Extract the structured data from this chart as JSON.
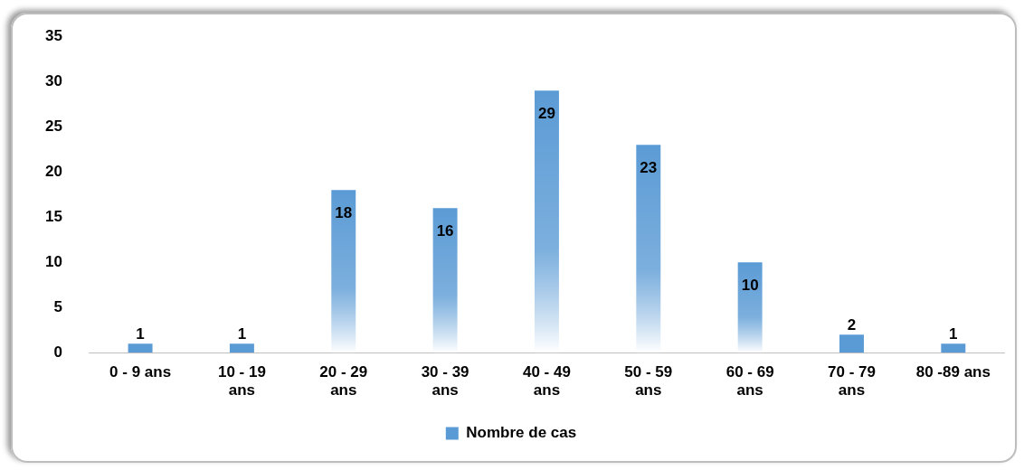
{
  "chart_data": {
    "type": "bar",
    "categories": [
      "0 - 9 ans",
      "10 - 19 ans",
      "20 - 29 ans",
      "30 - 39 ans",
      "40 - 49 ans",
      "50 - 59 ans",
      "60 - 69 ans",
      "70 - 79 ans",
      "80 -89 ans"
    ],
    "series": [
      {
        "name": "Nombre de cas",
        "color": "#5b9bd5",
        "values": [
          1,
          1,
          18,
          16,
          29,
          23,
          10,
          2,
          1
        ]
      }
    ],
    "ylim": [
      0,
      35
    ],
    "yticks": [
      0,
      5,
      10,
      15,
      20,
      25,
      30,
      35
    ],
    "grid": false,
    "legend": "bottom",
    "data_labels": true
  }
}
